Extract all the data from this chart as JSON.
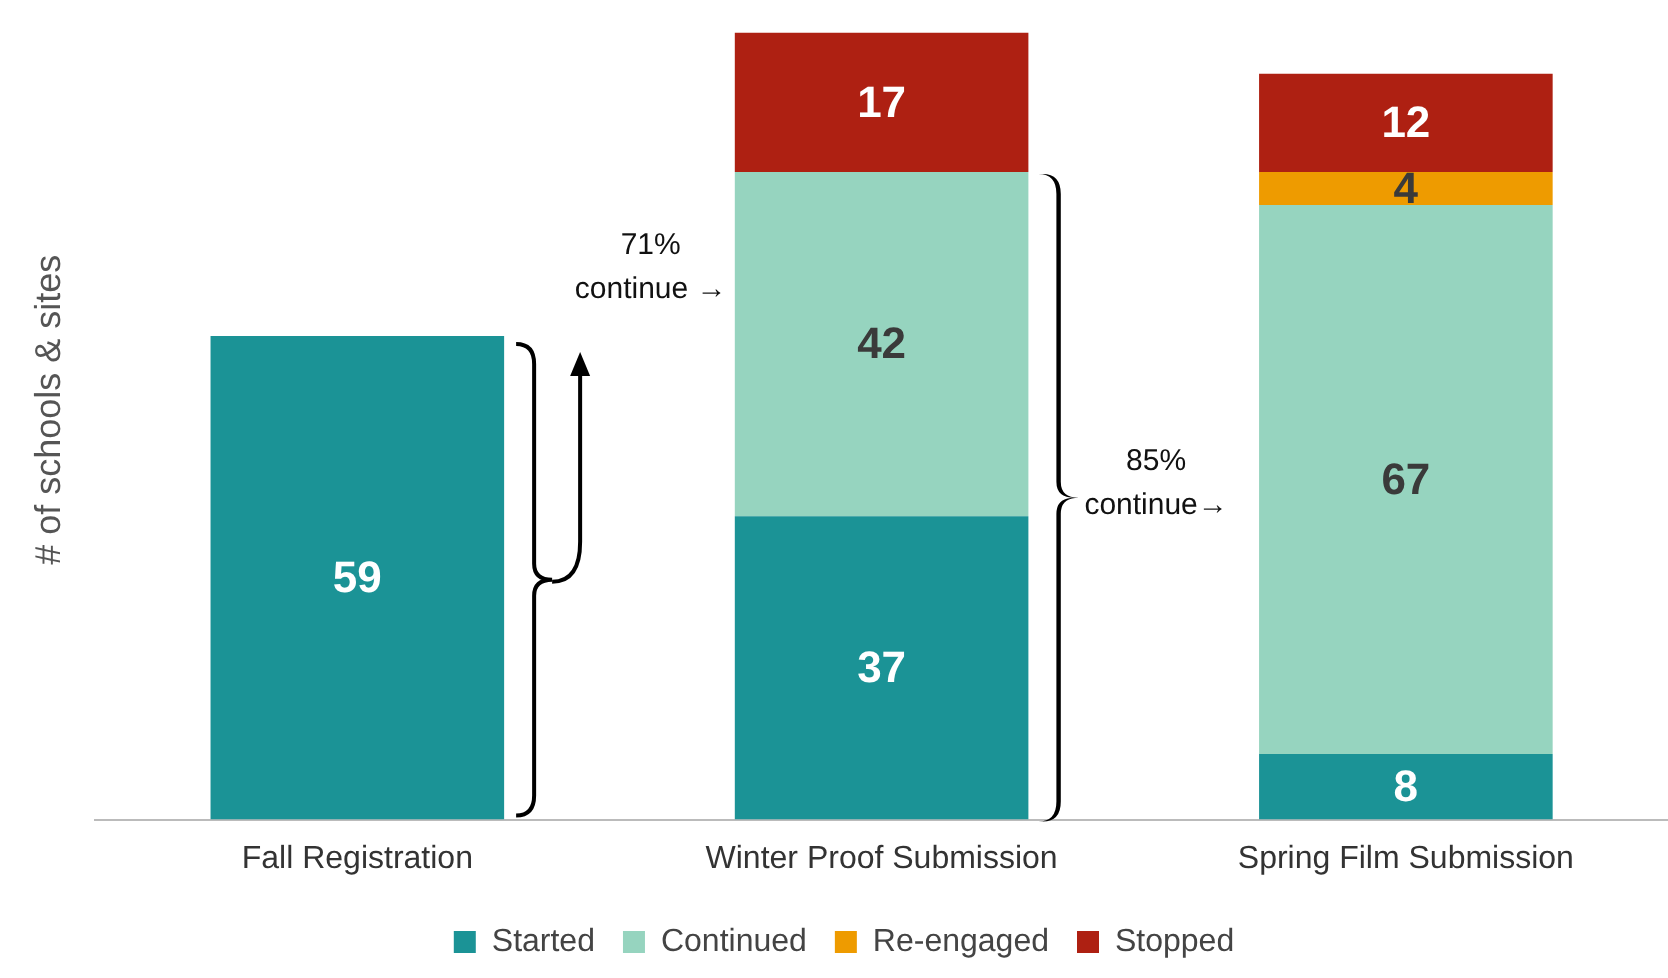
{
  "chart_data": {
    "type": "bar",
    "stacked": true,
    "ylabel": "# of schools & sites",
    "categories": [
      "Fall Registration",
      "Winter Proof Submission",
      "Spring Film Submission"
    ],
    "series": [
      {
        "name": "Started",
        "color": "#1b9396",
        "values": [
          59,
          37,
          8
        ]
      },
      {
        "name": "Continued",
        "color": "#96d4bf",
        "values": [
          null,
          42,
          67
        ]
      },
      {
        "name": "Re-engaged",
        "color": "#ee9b00",
        "values": [
          null,
          null,
          4
        ]
      },
      {
        "name": "Stopped",
        "color": "#ae2012",
        "values": [
          null,
          17,
          12
        ]
      }
    ],
    "data_labels": true,
    "legend": "bottom",
    "grid": false,
    "annotations": [
      "71%\ncontinue →",
      "85%\ncontinue→"
    ]
  }
}
